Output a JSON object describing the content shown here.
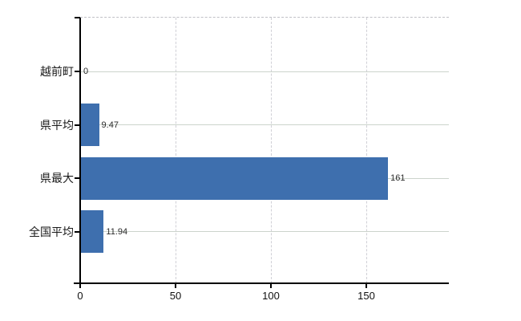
{
  "chart_data": {
    "type": "bar",
    "orientation": "horizontal",
    "title": "",
    "xlabel": "",
    "ylabel": "",
    "categories": [
      "越前町",
      "県平均",
      "県最大",
      "全国平均"
    ],
    "values": [
      0,
      9.47,
      161,
      11.94
    ],
    "value_labels": [
      "0",
      "9.47",
      "161",
      "11.94"
    ],
    "x_ticks": [
      0,
      50,
      100,
      150
    ],
    "x_tick_labels": [
      "0",
      "50",
      "100",
      "150"
    ],
    "xlim": [
      0,
      193
    ],
    "grid": true,
    "legend": false,
    "colors": {
      "bar": "#3e6fae",
      "axis": "#000000",
      "gridline_horizontal": "#ccd4cc",
      "gridline_vertical": "#d0d0d6",
      "plot_border_dashed": "#c0c0c6",
      "label_text": "#1a1a1a",
      "background": "#ffffff"
    }
  }
}
